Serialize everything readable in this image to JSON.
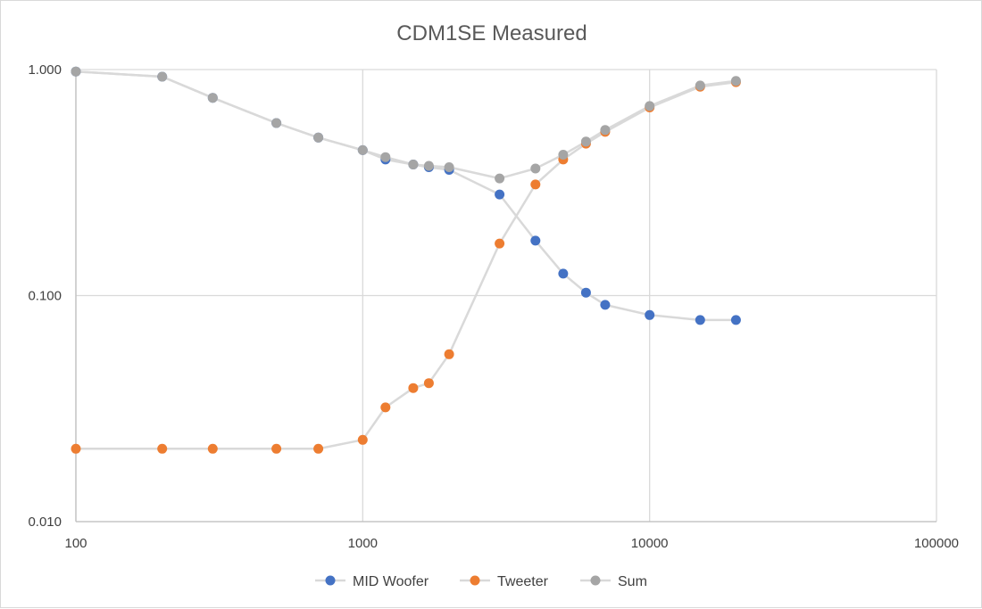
{
  "chart_data": {
    "type": "scatter",
    "title": "CDM1SE Measured",
    "xlabel": "",
    "ylabel": "",
    "x_scale": "log",
    "y_scale": "log",
    "xlim": [
      100,
      100000
    ],
    "ylim": [
      0.01,
      1
    ],
    "grid": true,
    "legend_position": "bottom",
    "x_ticks": [
      "100",
      "1000",
      "10000",
      "100000"
    ],
    "y_ticks": [
      "0.010",
      "0.100",
      "1.000"
    ],
    "series": [
      {
        "name": "MID Woofer",
        "color": "#4472C4",
        "x": [
          100,
          200,
          300,
          500,
          700,
          1000,
          1200,
          1500,
          1700,
          2000,
          3000,
          4000,
          5000,
          6000,
          7000,
          10000,
          15000,
          20000
        ],
        "y": [
          0.98,
          0.93,
          0.75,
          0.58,
          0.5,
          0.44,
          0.4,
          0.38,
          0.37,
          0.36,
          0.28,
          0.175,
          0.125,
          0.103,
          0.091,
          0.082,
          0.078,
          0.078
        ]
      },
      {
        "name": "Tweeter",
        "color": "#ED7D31",
        "x": [
          100,
          200,
          300,
          500,
          700,
          1000,
          1200,
          1500,
          1700,
          2000,
          3000,
          4000,
          5000,
          6000,
          7000,
          10000,
          15000,
          20000
        ],
        "y": [
          0.021,
          0.021,
          0.021,
          0.021,
          0.021,
          0.023,
          0.032,
          0.039,
          0.041,
          0.055,
          0.17,
          0.31,
          0.4,
          0.47,
          0.53,
          0.68,
          0.84,
          0.88
        ]
      },
      {
        "name": "Sum",
        "color": "#A5A5A5",
        "x": [
          100,
          200,
          300,
          500,
          700,
          1000,
          1200,
          1500,
          1700,
          2000,
          3000,
          4000,
          5000,
          6000,
          7000,
          10000,
          15000,
          20000
        ],
        "y": [
          0.98,
          0.93,
          0.75,
          0.58,
          0.5,
          0.44,
          0.41,
          0.38,
          0.375,
          0.37,
          0.33,
          0.365,
          0.42,
          0.48,
          0.54,
          0.69,
          0.85,
          0.89
        ]
      }
    ]
  }
}
